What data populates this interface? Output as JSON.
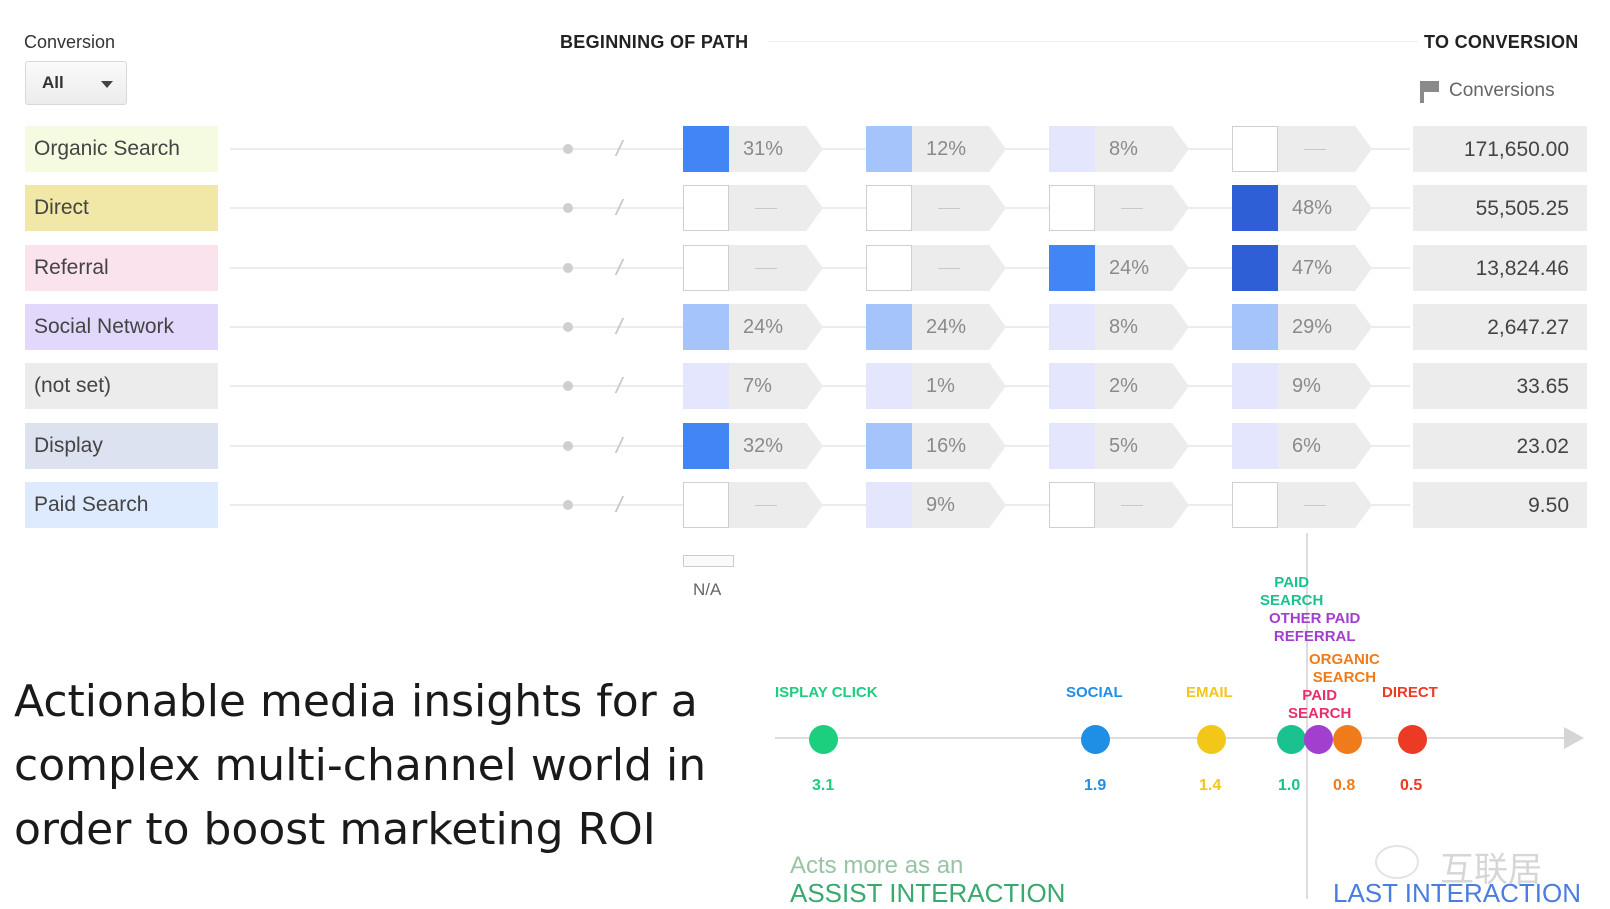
{
  "header": {
    "conversion_label": "Conversion",
    "dropdown_value": "All",
    "beginning_label": "BEGINNING OF PATH",
    "to_conversion_label": "TO CONVERSION",
    "conversions_label": "Conversions"
  },
  "rows": [
    {
      "channel": "Organic Search",
      "color": "#f4fbe0",
      "cells": [
        {
          "pct": "31%",
          "shade": "#4285f4"
        },
        {
          "pct": "12%",
          "shade": "#a5c4fb"
        },
        {
          "pct": "8%",
          "shade": "#e3e6fc"
        },
        {
          "pct": null,
          "shade": null
        }
      ],
      "conversions": "171,650.00"
    },
    {
      "channel": "Direct",
      "color": "#f1e7a6",
      "cells": [
        {
          "pct": null,
          "shade": null
        },
        {
          "pct": null,
          "shade": null
        },
        {
          "pct": null,
          "shade": null
        },
        {
          "pct": "48%",
          "shade": "#2f5fd6"
        }
      ],
      "conversions": "55,505.25"
    },
    {
      "channel": "Referral",
      "color": "#fbe3ee",
      "cells": [
        {
          "pct": null,
          "shade": null
        },
        {
          "pct": null,
          "shade": null
        },
        {
          "pct": "24%",
          "shade": "#4285f4"
        },
        {
          "pct": "47%",
          "shade": "#2f5fd6"
        }
      ],
      "conversions": "13,824.46"
    },
    {
      "channel": "Social Network",
      "color": "#e2d8fc",
      "cells": [
        {
          "pct": "24%",
          "shade": "#a5c4fb"
        },
        {
          "pct": "24%",
          "shade": "#a5c4fb"
        },
        {
          "pct": "8%",
          "shade": "#e3e6fc"
        },
        {
          "pct": "29%",
          "shade": "#a5c4fb"
        }
      ],
      "conversions": "2,647.27"
    },
    {
      "channel": "(not set)",
      "color": "#ececec",
      "cells": [
        {
          "pct": "7%",
          "shade": "#e3e6fc"
        },
        {
          "pct": "1%",
          "shade": "#e3e6fc"
        },
        {
          "pct": "2%",
          "shade": "#e3e6fc"
        },
        {
          "pct": "9%",
          "shade": "#e3e6fc"
        }
      ],
      "conversions": "33.65"
    },
    {
      "channel": "Display",
      "color": "#dde2f1",
      "cells": [
        {
          "pct": "32%",
          "shade": "#4285f4"
        },
        {
          "pct": "16%",
          "shade": "#a5c4fb"
        },
        {
          "pct": "5%",
          "shade": "#e3e6fc"
        },
        {
          "pct": "6%",
          "shade": "#e3e6fc"
        }
      ],
      "conversions": "23.02"
    },
    {
      "channel": "Paid Search",
      "color": "#deeafd",
      "cells": [
        {
          "pct": null,
          "shade": null
        },
        {
          "pct": "9%",
          "shade": "#e3e6fc"
        },
        {
          "pct": null,
          "shade": null
        },
        {
          "pct": null,
          "shade": null
        }
      ],
      "conversions": "9.50"
    }
  ],
  "empty_cell_label": "—",
  "na_label": "N/A",
  "headline": [
    "Actionable media insights for a",
    "complex multi-channel world in",
    "order to boost marketing ROI"
  ],
  "timeline": {
    "points": [
      {
        "label": "ISPLAY CLICK",
        "value": "3.1",
        "color": "#1ccf7e"
      },
      {
        "label": "SOCIAL",
        "value": "1.9",
        "color": "#1f8ee5"
      },
      {
        "label": "EMAIL",
        "value": "1.4",
        "color": "#f3c71a"
      },
      {
        "label": "PAID\nSEARCH",
        "value": "1.0",
        "color": "#19c28e"
      },
      {
        "label": "OTHER PAID\nREFERRAL",
        "value": "",
        "color": "#a23fcf"
      },
      {
        "label": "ORGANIC\nSEARCH",
        "value": "0.8",
        "color": "#f07b1a"
      },
      {
        "label": "PAID\nSEARCH",
        "value": "",
        "color": "#ea2d6e"
      },
      {
        "label": "DIRECT",
        "value": "0.5",
        "color": "#ec3b24"
      }
    ],
    "assist_line1": "Acts more as an",
    "assist_line2": "ASSIST INTERACTION",
    "last_interaction": "LAST INTERACTION",
    "watermark": "互联居"
  }
}
